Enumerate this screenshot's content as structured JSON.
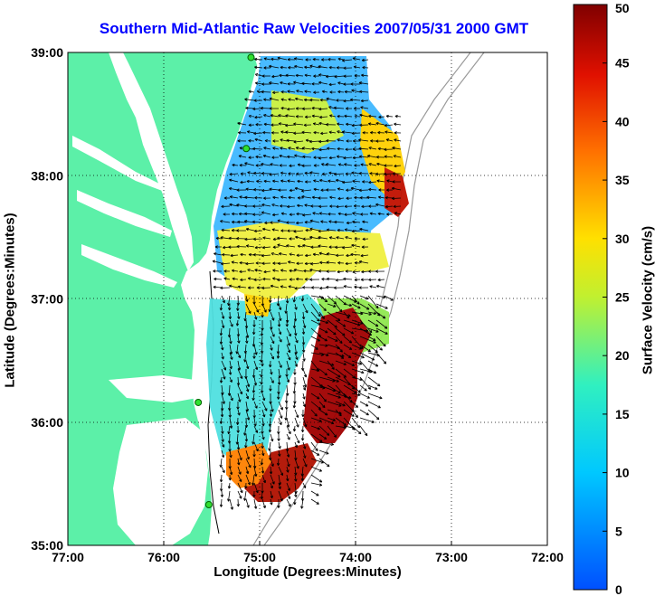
{
  "title": "Southern Mid-Atlantic Raw Velocities 2007/05/31 2000 GMT",
  "xlabel": "Longitude (Degrees:Minutes)",
  "ylabel": "Latitude (Degrees:Minutes)",
  "x_ticks": [
    "77:00",
    "76:00",
    "75:00",
    "74:00",
    "73:00",
    "72:00"
  ],
  "y_ticks": [
    "39:00",
    "38:00",
    "37:00",
    "36:00",
    "35:00"
  ],
  "colorbar": {
    "label": "Surface Velocity (cm/s)",
    "ticks": [
      "0",
      "5",
      "10",
      "15",
      "20",
      "25",
      "30",
      "35",
      "40",
      "45",
      "50"
    ],
    "range": [
      0,
      50
    ]
  },
  "map": {
    "lon_range": [
      -77,
      -72
    ],
    "lat_range": [
      35,
      39
    ],
    "land_color": "#5cf0a8",
    "stations": [
      {
        "lon": -75.09,
        "lat": 38.96
      },
      {
        "lon": -75.14,
        "lat": 38.22
      },
      {
        "lon": -75.64,
        "lat": 36.16
      },
      {
        "lon": -75.53,
        "lat": 35.33
      }
    ]
  },
  "colors": {
    "title": "#0000ff",
    "axis": "#000000"
  }
}
